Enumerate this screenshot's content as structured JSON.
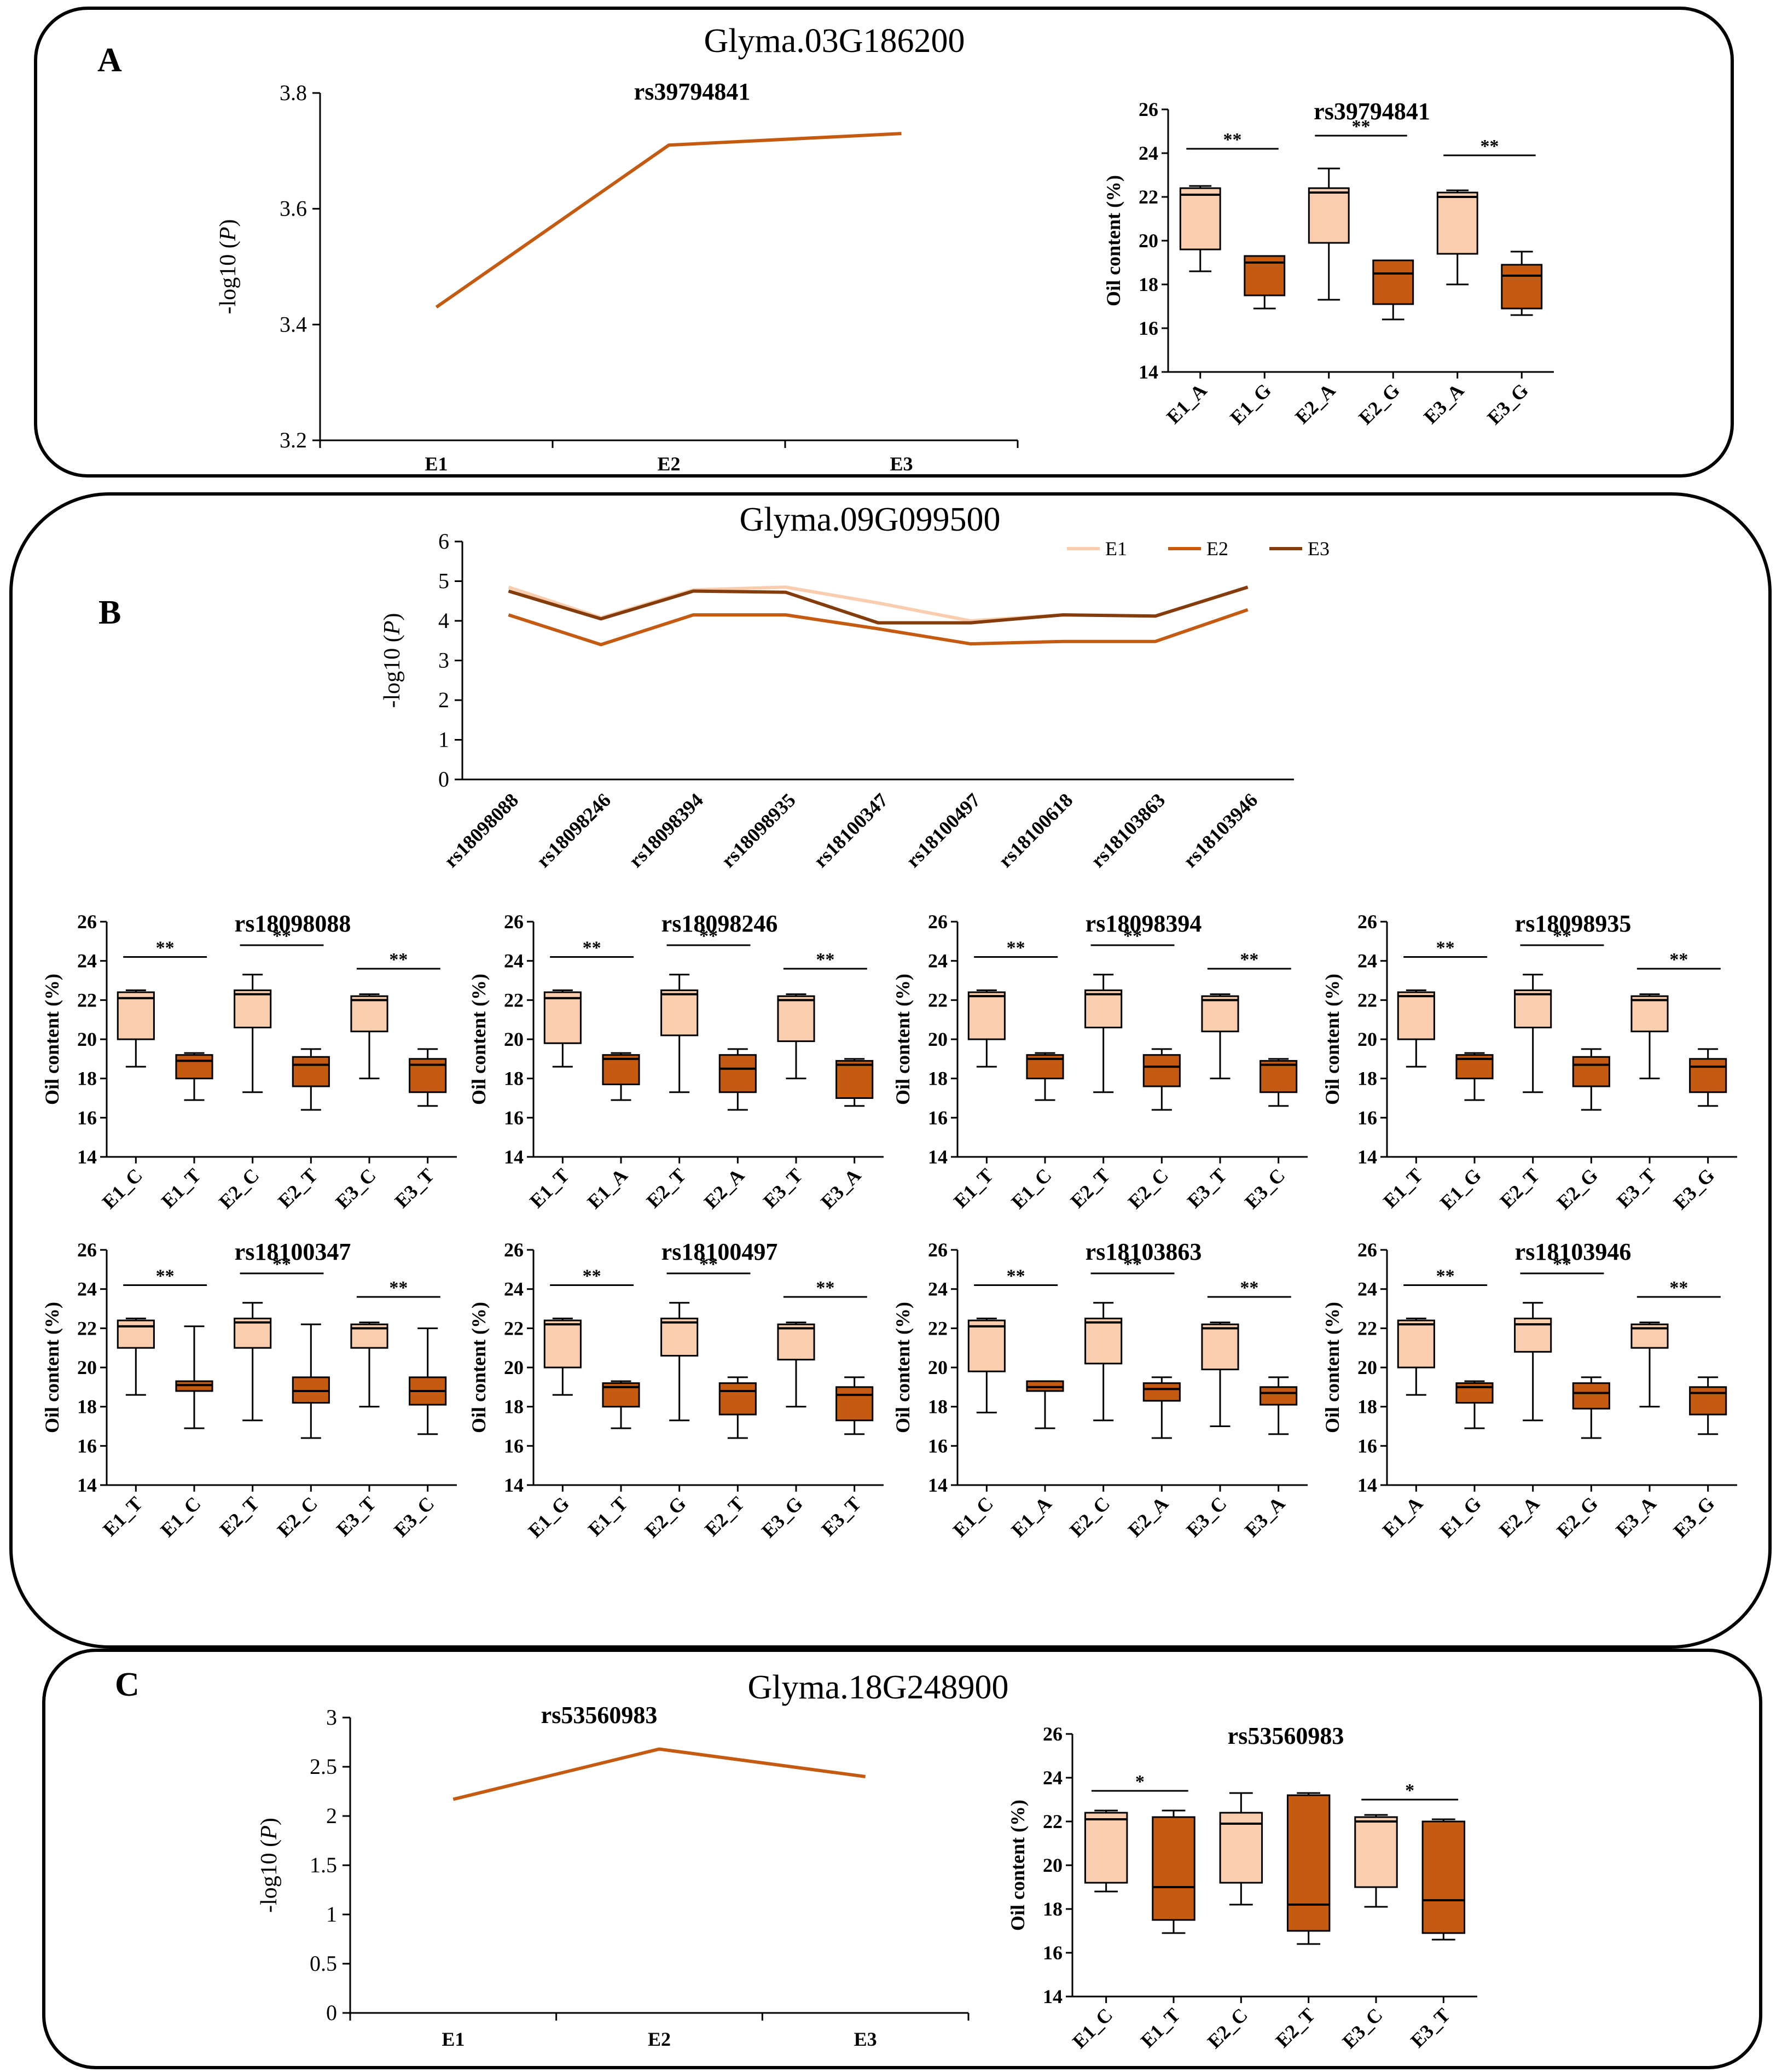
{
  "colors": {
    "light": "#f9cdae",
    "dark": "#c55a11",
    "darkest": "#843c0c",
    "line": "#000000"
  },
  "panels": {
    "A": {
      "letter": "A",
      "gene": "Glyma.03G186200"
    },
    "B": {
      "letter": "B",
      "gene": "Glyma.09G099500"
    },
    "C": {
      "letter": "C",
      "gene": "Glyma.18G248900"
    }
  },
  "chart_data": [
    {
      "id": "A_line",
      "type": "line",
      "title": "rs39794841",
      "xlabel": "",
      "ylabel": "-log10 (P)",
      "categories": [
        "E1",
        "E2",
        "E3"
      ],
      "ylim": [
        3.2,
        3.8
      ],
      "yticks": [
        "3.2",
        "3.4",
        "3.6",
        "3.8"
      ],
      "series": [
        {
          "name": "rs39794841",
          "values": [
            3.43,
            3.71,
            3.73
          ]
        }
      ]
    },
    {
      "id": "A_box",
      "type": "box",
      "title": "rs39794841",
      "ylabel": "Oil content (%)",
      "ylim": [
        14,
        26
      ],
      "yticks": [
        "14",
        "16",
        "18",
        "20",
        "22",
        "24",
        "26"
      ],
      "categories": [
        "E1_A",
        "E1_G",
        "E2_A",
        "E2_G",
        "E3_A",
        "E3_G"
      ],
      "boxes": [
        {
          "min": 18.6,
          "q1": 19.6,
          "median": 22.1,
          "q3": 22.4,
          "max": 22.5
        },
        {
          "min": 16.9,
          "q1": 17.5,
          "median": 19.0,
          "q3": 19.3,
          "max": 19.3
        },
        {
          "min": 17.3,
          "q1": 19.9,
          "median": 22.2,
          "q3": 22.4,
          "max": 23.3
        },
        {
          "min": 16.4,
          "q1": 17.1,
          "median": 18.5,
          "q3": 19.1,
          "max": 19.1
        },
        {
          "min": 18.0,
          "q1": 19.4,
          "median": 22.0,
          "q3": 22.2,
          "max": 22.3
        },
        {
          "min": 16.6,
          "q1": 16.9,
          "median": 18.4,
          "q3": 18.9,
          "max": 19.5
        }
      ],
      "significance": [
        {
          "from": 0,
          "to": 1,
          "label": "**",
          "y": 24.2
        },
        {
          "from": 2,
          "to": 3,
          "label": "**",
          "y": 24.8
        },
        {
          "from": 4,
          "to": 5,
          "label": "**",
          "y": 23.9
        }
      ]
    },
    {
      "id": "B_line",
      "type": "line",
      "title": "",
      "xlabel": "",
      "ylabel": "-log10 (P)",
      "categories": [
        "rs18098088",
        "rs18098246",
        "rs18098394",
        "rs18098935",
        "rs18100347",
        "rs18100497",
        "rs18100618",
        "rs18103863",
        "rs18103946"
      ],
      "ylim": [
        0,
        6
      ],
      "yticks": [
        "0",
        "1",
        "2",
        "3",
        "4",
        "5",
        "6"
      ],
      "series": [
        {
          "name": "E1",
          "values": [
            4.85,
            4.08,
            4.78,
            4.85,
            4.45,
            4.0,
            4.15,
            4.12,
            4.85
          ]
        },
        {
          "name": "E2",
          "values": [
            4.15,
            3.4,
            4.15,
            4.15,
            3.8,
            3.42,
            3.48,
            3.48,
            4.28
          ]
        },
        {
          "name": "E3",
          "values": [
            4.75,
            4.05,
            4.75,
            4.72,
            3.95,
            3.95,
            4.15,
            4.12,
            4.85
          ]
        }
      ]
    },
    {
      "id": "B_rs18098088",
      "type": "box",
      "title": "rs18098088",
      "ylabel": "Oil content (%)",
      "ylim": [
        14,
        26
      ],
      "yticks": [
        "14",
        "16",
        "18",
        "20",
        "22",
        "24",
        "26"
      ],
      "categories": [
        "E1_C",
        "E1_T",
        "E2_C",
        "E2_T",
        "E3_C",
        "E3_T"
      ],
      "boxes": [
        {
          "min": 18.6,
          "q1": 20.0,
          "median": 22.1,
          "q3": 22.4,
          "max": 22.5
        },
        {
          "min": 16.9,
          "q1": 18.0,
          "median": 18.9,
          "q3": 19.2,
          "max": 19.3
        },
        {
          "min": 17.3,
          "q1": 20.6,
          "median": 22.3,
          "q3": 22.5,
          "max": 23.3
        },
        {
          "min": 16.4,
          "q1": 17.6,
          "median": 18.7,
          "q3": 19.1,
          "max": 19.5
        },
        {
          "min": 18.0,
          "q1": 20.4,
          "median": 22.0,
          "q3": 22.2,
          "max": 22.3
        },
        {
          "min": 16.6,
          "q1": 17.3,
          "median": 18.7,
          "q3": 19.0,
          "max": 19.5
        }
      ],
      "significance": [
        {
          "from": 0,
          "to": 1,
          "label": "**",
          "y": 24.2
        },
        {
          "from": 2,
          "to": 3,
          "label": "**",
          "y": 24.8
        },
        {
          "from": 4,
          "to": 5,
          "label": "**",
          "y": 23.6
        }
      ]
    },
    {
      "id": "B_rs18098246",
      "type": "box",
      "title": "rs18098246",
      "ylabel": "Oil content (%)",
      "ylim": [
        14,
        26
      ],
      "yticks": [
        "14",
        "16",
        "18",
        "20",
        "22",
        "24",
        "26"
      ],
      "categories": [
        "E1_T",
        "E1_A",
        "E2_T",
        "E2_A",
        "E3_T",
        "E3_A"
      ],
      "boxes": [
        {
          "min": 18.6,
          "q1": 19.8,
          "median": 22.1,
          "q3": 22.4,
          "max": 22.5
        },
        {
          "min": 16.9,
          "q1": 17.7,
          "median": 19.0,
          "q3": 19.2,
          "max": 19.3
        },
        {
          "min": 17.3,
          "q1": 20.2,
          "median": 22.3,
          "q3": 22.5,
          "max": 23.3
        },
        {
          "min": 16.4,
          "q1": 17.3,
          "median": 18.5,
          "q3": 19.2,
          "max": 19.5
        },
        {
          "min": 18.0,
          "q1": 19.9,
          "median": 22.0,
          "q3": 22.2,
          "max": 22.3
        },
        {
          "min": 16.6,
          "q1": 17.0,
          "median": 18.7,
          "q3": 18.9,
          "max": 19.0
        }
      ],
      "significance": [
        {
          "from": 0,
          "to": 1,
          "label": "**",
          "y": 24.2
        },
        {
          "from": 2,
          "to": 3,
          "label": "**",
          "y": 24.8
        },
        {
          "from": 4,
          "to": 5,
          "label": "**",
          "y": 23.6
        }
      ]
    },
    {
      "id": "B_rs18098394",
      "type": "box",
      "title": "rs18098394",
      "ylabel": "Oil content (%)",
      "ylim": [
        14,
        26
      ],
      "yticks": [
        "14",
        "16",
        "18",
        "20",
        "22",
        "24",
        "26"
      ],
      "categories": [
        "E1_T",
        "E1_C",
        "E2_T",
        "E2_C",
        "E3_T",
        "E3_C"
      ],
      "boxes": [
        {
          "min": 18.6,
          "q1": 20.0,
          "median": 22.2,
          "q3": 22.4,
          "max": 22.5
        },
        {
          "min": 16.9,
          "q1": 18.0,
          "median": 19.0,
          "q3": 19.2,
          "max": 19.3
        },
        {
          "min": 17.3,
          "q1": 20.6,
          "median": 22.3,
          "q3": 22.5,
          "max": 23.3
        },
        {
          "min": 16.4,
          "q1": 17.6,
          "median": 18.6,
          "q3": 19.2,
          "max": 19.5
        },
        {
          "min": 18.0,
          "q1": 20.4,
          "median": 22.0,
          "q3": 22.2,
          "max": 22.3
        },
        {
          "min": 16.6,
          "q1": 17.3,
          "median": 18.7,
          "q3": 18.9,
          "max": 19.0
        }
      ],
      "significance": [
        {
          "from": 0,
          "to": 1,
          "label": "**",
          "y": 24.2
        },
        {
          "from": 2,
          "to": 3,
          "label": "**",
          "y": 24.8
        },
        {
          "from": 4,
          "to": 5,
          "label": "**",
          "y": 23.6
        }
      ]
    },
    {
      "id": "B_rs18098935",
      "type": "box",
      "title": "rs18098935",
      "ylabel": "Oil content (%)",
      "ylim": [
        14,
        26
      ],
      "yticks": [
        "14",
        "16",
        "18",
        "20",
        "22",
        "24",
        "26"
      ],
      "categories": [
        "E1_T",
        "E1_G",
        "E2_T",
        "E2_G",
        "E3_T",
        "E3_G"
      ],
      "boxes": [
        {
          "min": 18.6,
          "q1": 20.0,
          "median": 22.2,
          "q3": 22.4,
          "max": 22.5
        },
        {
          "min": 16.9,
          "q1": 18.0,
          "median": 19.0,
          "q3": 19.2,
          "max": 19.3
        },
        {
          "min": 17.3,
          "q1": 20.6,
          "median": 22.3,
          "q3": 22.5,
          "max": 23.3
        },
        {
          "min": 16.4,
          "q1": 17.6,
          "median": 18.7,
          "q3": 19.1,
          "max": 19.5
        },
        {
          "min": 18.0,
          "q1": 20.4,
          "median": 22.0,
          "q3": 22.2,
          "max": 22.3
        },
        {
          "min": 16.6,
          "q1": 17.3,
          "median": 18.6,
          "q3": 19.0,
          "max": 19.5
        }
      ],
      "significance": [
        {
          "from": 0,
          "to": 1,
          "label": "**",
          "y": 24.2
        },
        {
          "from": 2,
          "to": 3,
          "label": "**",
          "y": 24.8
        },
        {
          "from": 4,
          "to": 5,
          "label": "**",
          "y": 23.6
        }
      ]
    },
    {
      "id": "B_rs18100347",
      "type": "box",
      "title": "rs18100347",
      "ylabel": "Oil content (%)",
      "ylim": [
        14,
        26
      ],
      "yticks": [
        "14",
        "16",
        "18",
        "20",
        "22",
        "24",
        "26"
      ],
      "categories": [
        "E1_T",
        "E1_C",
        "E2_T",
        "E2_C",
        "E3_T",
        "E3_C"
      ],
      "boxes": [
        {
          "min": 18.6,
          "q1": 21.0,
          "median": 22.1,
          "q3": 22.4,
          "max": 22.5
        },
        {
          "min": 16.9,
          "q1": 18.8,
          "median": 19.1,
          "q3": 19.3,
          "max": 22.1
        },
        {
          "min": 17.3,
          "q1": 21.0,
          "median": 22.3,
          "q3": 22.5,
          "max": 23.3
        },
        {
          "min": 16.4,
          "q1": 18.2,
          "median": 18.8,
          "q3": 19.5,
          "max": 22.2
        },
        {
          "min": 18.0,
          "q1": 21.0,
          "median": 22.0,
          "q3": 22.2,
          "max": 22.3
        },
        {
          "min": 16.6,
          "q1": 18.1,
          "median": 18.8,
          "q3": 19.5,
          "max": 22.0
        }
      ],
      "significance": [
        {
          "from": 0,
          "to": 1,
          "label": "**",
          "y": 24.2
        },
        {
          "from": 2,
          "to": 3,
          "label": "**",
          "y": 24.8
        },
        {
          "from": 4,
          "to": 5,
          "label": "**",
          "y": 23.6
        }
      ]
    },
    {
      "id": "B_rs18100497",
      "type": "box",
      "title": "rs18100497",
      "ylabel": "Oil content (%)",
      "ylim": [
        14,
        26
      ],
      "yticks": [
        "14",
        "16",
        "18",
        "20",
        "22",
        "24",
        "26"
      ],
      "categories": [
        "E1_G",
        "E1_T",
        "E2_G",
        "E2_T",
        "E3_G",
        "E3_T"
      ],
      "boxes": [
        {
          "min": 18.6,
          "q1": 20.0,
          "median": 22.2,
          "q3": 22.4,
          "max": 22.5
        },
        {
          "min": 16.9,
          "q1": 18.0,
          "median": 19.0,
          "q3": 19.2,
          "max": 19.3
        },
        {
          "min": 17.3,
          "q1": 20.6,
          "median": 22.3,
          "q3": 22.5,
          "max": 23.3
        },
        {
          "min": 16.4,
          "q1": 17.6,
          "median": 18.8,
          "q3": 19.2,
          "max": 19.5
        },
        {
          "min": 18.0,
          "q1": 20.4,
          "median": 22.0,
          "q3": 22.2,
          "max": 22.3
        },
        {
          "min": 16.6,
          "q1": 17.3,
          "median": 18.6,
          "q3": 19.0,
          "max": 19.5
        }
      ],
      "significance": [
        {
          "from": 0,
          "to": 1,
          "label": "**",
          "y": 24.2
        },
        {
          "from": 2,
          "to": 3,
          "label": "**",
          "y": 24.8
        },
        {
          "from": 4,
          "to": 5,
          "label": "**",
          "y": 23.6
        }
      ]
    },
    {
      "id": "B_rs18103863",
      "type": "box",
      "title": "rs18103863",
      "ylabel": "Oil content (%)",
      "ylim": [
        14,
        26
      ],
      "yticks": [
        "14",
        "16",
        "18",
        "20",
        "22",
        "24",
        "26"
      ],
      "categories": [
        "E1_C",
        "E1_A",
        "E2_C",
        "E2_A",
        "E3_C",
        "E3_A"
      ],
      "boxes": [
        {
          "min": 17.7,
          "q1": 19.8,
          "median": 22.1,
          "q3": 22.4,
          "max": 22.5
        },
        {
          "min": 16.9,
          "q1": 18.8,
          "median": 19.0,
          "q3": 19.3,
          "max": 19.3
        },
        {
          "min": 17.3,
          "q1": 20.2,
          "median": 22.3,
          "q3": 22.5,
          "max": 23.3
        },
        {
          "min": 16.4,
          "q1": 18.3,
          "median": 18.9,
          "q3": 19.2,
          "max": 19.5
        },
        {
          "min": 17.0,
          "q1": 19.9,
          "median": 22.0,
          "q3": 22.2,
          "max": 22.3
        },
        {
          "min": 16.6,
          "q1": 18.1,
          "median": 18.7,
          "q3": 19.0,
          "max": 19.5
        }
      ],
      "significance": [
        {
          "from": 0,
          "to": 1,
          "label": "**",
          "y": 24.2
        },
        {
          "from": 2,
          "to": 3,
          "label": "**",
          "y": 24.8
        },
        {
          "from": 4,
          "to": 5,
          "label": "**",
          "y": 23.6
        }
      ]
    },
    {
      "id": "B_rs18103946",
      "type": "box",
      "title": "rs18103946",
      "ylabel": "Oil content (%)",
      "ylim": [
        14,
        26
      ],
      "yticks": [
        "14",
        "16",
        "18",
        "20",
        "22",
        "24",
        "26"
      ],
      "categories": [
        "E1_A",
        "E1_G",
        "E2_A",
        "E2_G",
        "E3_A",
        "E3_G"
      ],
      "boxes": [
        {
          "min": 18.6,
          "q1": 20.0,
          "median": 22.2,
          "q3": 22.4,
          "max": 22.5
        },
        {
          "min": 16.9,
          "q1": 18.2,
          "median": 19.0,
          "q3": 19.2,
          "max": 19.3
        },
        {
          "min": 17.3,
          "q1": 20.8,
          "median": 22.2,
          "q3": 22.5,
          "max": 23.3
        },
        {
          "min": 16.4,
          "q1": 17.9,
          "median": 18.7,
          "q3": 19.2,
          "max": 19.5
        },
        {
          "min": 18.0,
          "q1": 21.0,
          "median": 22.0,
          "q3": 22.2,
          "max": 22.3
        },
        {
          "min": 16.6,
          "q1": 17.6,
          "median": 18.7,
          "q3": 19.0,
          "max": 19.5
        }
      ],
      "significance": [
        {
          "from": 0,
          "to": 1,
          "label": "**",
          "y": 24.2
        },
        {
          "from": 2,
          "to": 3,
          "label": "**",
          "y": 24.8
        },
        {
          "from": 4,
          "to": 5,
          "label": "**",
          "y": 23.6
        }
      ]
    },
    {
      "id": "C_line",
      "type": "line",
      "title": "rs53560983",
      "xlabel": "",
      "ylabel": "-log10 (P)",
      "categories": [
        "E1",
        "E2",
        "E3"
      ],
      "ylim": [
        0,
        3
      ],
      "yticks": [
        "0",
        "0.5",
        "1",
        "1.5",
        "2",
        "2.5",
        "3"
      ],
      "series": [
        {
          "name": "rs53560983",
          "values": [
            2.17,
            2.68,
            2.4
          ]
        }
      ]
    },
    {
      "id": "C_box",
      "type": "box",
      "title": "rs53560983",
      "ylabel": "Oil content (%)",
      "ylim": [
        14,
        26
      ],
      "yticks": [
        "14",
        "16",
        "18",
        "20",
        "22",
        "24",
        "26"
      ],
      "categories": [
        "E1_C",
        "E1_T",
        "E2_C",
        "E2_T",
        "E3_C",
        "E3_T"
      ],
      "boxes": [
        {
          "min": 18.8,
          "q1": 19.2,
          "median": 22.1,
          "q3": 22.4,
          "max": 22.5
        },
        {
          "min": 16.9,
          "q1": 17.5,
          "median": 19.0,
          "q3": 22.2,
          "max": 22.5
        },
        {
          "min": 18.2,
          "q1": 19.2,
          "median": 21.9,
          "q3": 22.4,
          "max": 23.3
        },
        {
          "min": 16.4,
          "q1": 17.0,
          "median": 18.2,
          "q3": 23.2,
          "max": 23.3
        },
        {
          "min": 18.1,
          "q1": 19.0,
          "median": 22.0,
          "q3": 22.2,
          "max": 22.3
        },
        {
          "min": 16.6,
          "q1": 16.9,
          "median": 18.4,
          "q3": 22.0,
          "max": 22.1
        }
      ],
      "significance": [
        {
          "from": 0,
          "to": 1,
          "label": "*",
          "y": 23.4
        },
        {
          "from": 4,
          "to": 5,
          "label": "*",
          "y": 23.0
        }
      ]
    }
  ]
}
